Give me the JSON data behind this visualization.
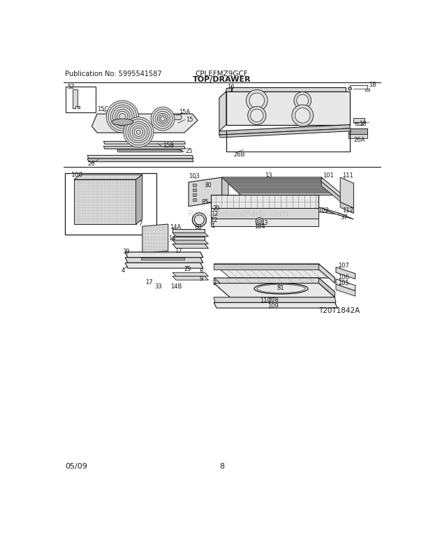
{
  "page_bg": "#ffffff",
  "title_model": "CPLEFMZ9GCF",
  "title_section": "TOP/DRAWER",
  "pub_no": "Publication No: 5995541587",
  "date": "05/09",
  "page_num": "8",
  "diagram_id": "T20T1842A",
  "watermark": "ReplacementParts.com",
  "text_color": "#1a1a1a",
  "line_color": "#1a1a1a",
  "gray1": "#c8c8c8",
  "gray2": "#d8d8d8",
  "gray3": "#e8e8e8",
  "gray4": "#b0b0b0",
  "gray5": "#a0a0a0"
}
